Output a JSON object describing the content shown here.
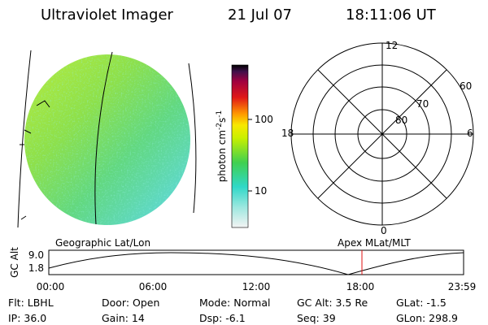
{
  "header": {
    "instrument": "Ultraviolet Imager",
    "date": "21 Jul 07",
    "time": "18:11:06 UT"
  },
  "colorbar": {
    "label": [
      "photon cm",
      "-2",
      "s",
      "-1"
    ],
    "ticks": [
      "100",
      "10"
    ]
  },
  "polar": {
    "mlt_labels": [
      "12",
      "18",
      "6",
      "0"
    ],
    "mlat_labels": [
      "60",
      "70",
      "80"
    ]
  },
  "altitude_panel": {
    "left_title": "Geographic Lat/Lon",
    "right_title": "Apex MLat/MLT",
    "y_label": "GC Alt",
    "y_ticks": [
      "9.0",
      "1.8"
    ],
    "x_ticks": [
      "00:00",
      "06:00",
      "12:00",
      "18:00",
      "23:59"
    ]
  },
  "status": {
    "rows": [
      [
        "Flt: LBHL",
        "Door: Open",
        "Mode: Normal",
        "GC Alt: 3.5 Re",
        "GLat: -1.5"
      ],
      [
        "IP: 36.0",
        "Gain: 14",
        "Dsp: -6.1",
        "Seq: 39",
        "GLon: 298.9"
      ]
    ]
  }
}
